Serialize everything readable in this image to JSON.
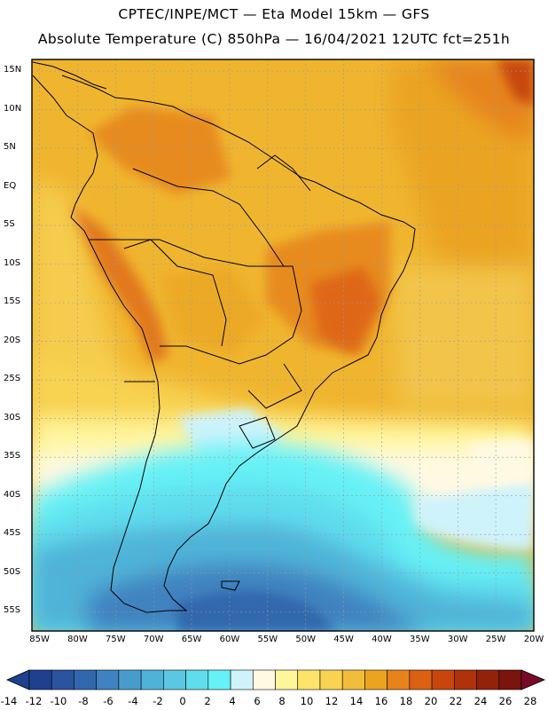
{
  "header": {
    "line1": "CPTEC/INPE/MCT —  Eta Model 15km — GFS",
    "line2": "Absolute Temperature (C) 850hPa — 16/04/2021 12UTC fct=251h"
  },
  "map": {
    "region": "South America",
    "lon_range": [
      -86,
      -20
    ],
    "lat_range": [
      -57.5,
      16.5
    ],
    "lat_labels": [
      "15N",
      "10N",
      "5N",
      "EQ",
      "5S",
      "10S",
      "15S",
      "20S",
      "25S",
      "30S",
      "35S",
      "40S",
      "45S",
      "50S",
      "55S"
    ],
    "lon_labels": [
      "85W",
      "80W",
      "75W",
      "70W",
      "65W",
      "60W",
      "55W",
      "50W",
      "45W",
      "40W",
      "35W",
      "30W",
      "25W",
      "20W"
    ],
    "gridlines": "dashed"
  },
  "colorbar": {
    "labels": [
      "-14",
      "-12",
      "-10",
      "-8",
      "-6",
      "-4",
      "-2",
      "0",
      "2",
      "4",
      "6",
      "8",
      "10",
      "12",
      "14",
      "16",
      "18",
      "20",
      "22",
      "24",
      "26",
      "28"
    ],
    "colors": [
      "#1f3f8f",
      "#2a54a0",
      "#3168ad",
      "#3f82bf",
      "#489ccc",
      "#4fb3d8",
      "#5ac8e2",
      "#5fdded",
      "#66f1f6",
      "#cef3fb",
      "#fff9e3",
      "#fff59c",
      "#fde36a",
      "#f8d251",
      "#f2bd3a",
      "#eba420",
      "#e6841b",
      "#dc5f12",
      "#c8460c",
      "#b0320a",
      "#93220b",
      "#7a140c"
    ]
  }
}
